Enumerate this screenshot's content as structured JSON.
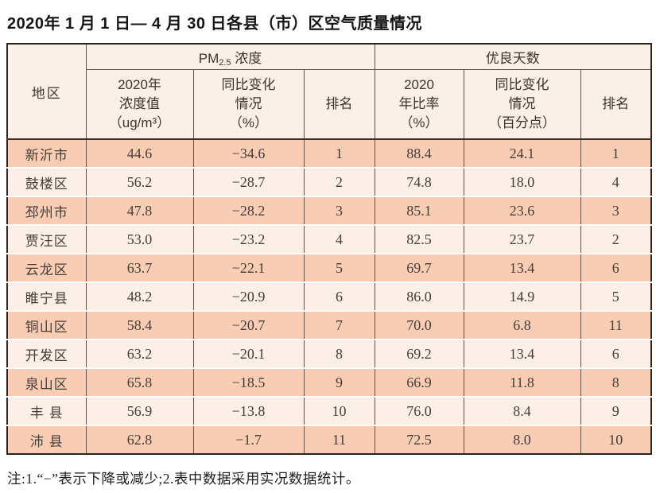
{
  "title": "2020年 1 月 1 日— 4 月 30 日各县（市）区空气质量情况",
  "table": {
    "header": {
      "region": "地区",
      "pm_prefix": "PM",
      "pm_sub": "2.5",
      "pm_suffix": " 浓度",
      "days_group": "优良天数",
      "sub": [
        "2020年\n浓度值\n（ug/m³）",
        "同比变化\n情况\n（%）",
        "排名",
        "2020\n年比率\n（%）",
        "同比变化\n情况\n（百分点）",
        "排名"
      ]
    },
    "rows": [
      {
        "region": "新沂市",
        "pm_value": "44.6",
        "pm_change": "−34.6",
        "pm_rank": "1",
        "rate": "88.4",
        "rate_change": "24.1",
        "rank": "1"
      },
      {
        "region": "鼓楼区",
        "pm_value": "56.2",
        "pm_change": "−28.7",
        "pm_rank": "2",
        "rate": "74.8",
        "rate_change": "18.0",
        "rank": "4"
      },
      {
        "region": "邳州市",
        "pm_value": "47.8",
        "pm_change": "−28.2",
        "pm_rank": "3",
        "rate": "85.1",
        "rate_change": "23.6",
        "rank": "3"
      },
      {
        "region": "贾汪区",
        "pm_value": "53.0",
        "pm_change": "−23.2",
        "pm_rank": "4",
        "rate": "82.5",
        "rate_change": "23.7",
        "rank": "2"
      },
      {
        "region": "云龙区",
        "pm_value": "63.7",
        "pm_change": "−22.1",
        "pm_rank": "5",
        "rate": "69.7",
        "rate_change": "13.4",
        "rank": "6"
      },
      {
        "region": "睢宁县",
        "pm_value": "48.2",
        "pm_change": "−20.9",
        "pm_rank": "6",
        "rate": "86.0",
        "rate_change": "14.9",
        "rank": "5"
      },
      {
        "region": "铜山区",
        "pm_value": "58.4",
        "pm_change": "−20.7",
        "pm_rank": "7",
        "rate": "70.0",
        "rate_change": "6.8",
        "rank": "11"
      },
      {
        "region": "开发区",
        "pm_value": "63.2",
        "pm_change": "−20.1",
        "pm_rank": "8",
        "rate": "69.2",
        "rate_change": "13.4",
        "rank": "6"
      },
      {
        "region": "泉山区",
        "pm_value": "65.8",
        "pm_change": "−18.5",
        "pm_rank": "9",
        "rate": "66.9",
        "rate_change": "11.8",
        "rank": "8"
      },
      {
        "region": "丰 县",
        "pm_value": "56.9",
        "pm_change": "−13.8",
        "pm_rank": "10",
        "rate": "76.0",
        "rate_change": "8.4",
        "rank": "9"
      },
      {
        "region": "沛 县",
        "pm_value": "62.8",
        "pm_change": "−1.7",
        "pm_rank": "11",
        "rate": "72.5",
        "rate_change": "8.0",
        "rank": "10"
      }
    ]
  },
  "note": "注:1.“−”表示下降或减少;2.表中数据采用实况数据统计。",
  "colors": {
    "row_odd": "#f8cdb4",
    "row_even": "#fcefe7",
    "header_bg": "#faf0e8",
    "grid_line": "#5f534b",
    "outer_border": "#2b2520",
    "text": "#453d38"
  }
}
